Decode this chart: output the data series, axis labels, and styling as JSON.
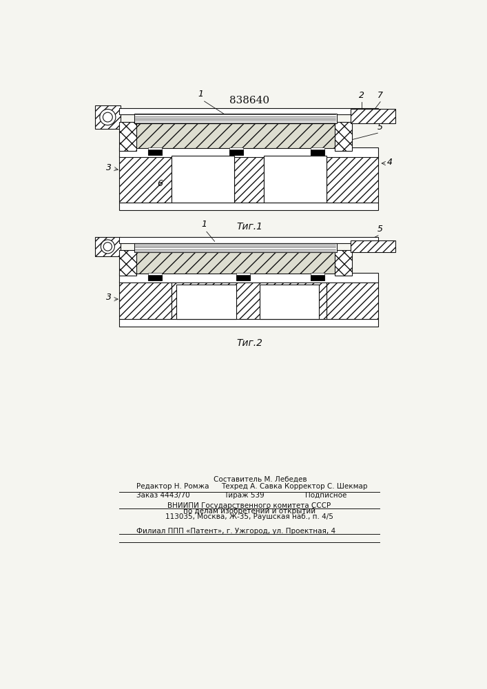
{
  "title": "838640",
  "fig1_caption": "Τиг.1",
  "fig2_caption": "Τиг.2",
  "footer_line1": "Составитель М. Лебедев",
  "footer_line2a": "Редактор Н. Ромжа",
  "footer_line2b": "Техред А. Савка",
  "footer_line2c": "Корректор С. Шекмар",
  "footer_line3a": "Заказ 4443/70",
  "footer_line3b": "Тираж 539",
  "footer_line3c": "Подписное",
  "footer_line4": "ВНИИПИ Государственного комитета СССР",
  "footer_line5": "по делам изобретений и открытий",
  "footer_line6": "113035, Москва, Ж-35, Раушская наб., п. 4/5",
  "footer_line7": "Филиал ППП «Патент», г. Ужгород, ул. Проектная, 4",
  "bg_color": "#f5f5f0",
  "line_color": "#111111"
}
